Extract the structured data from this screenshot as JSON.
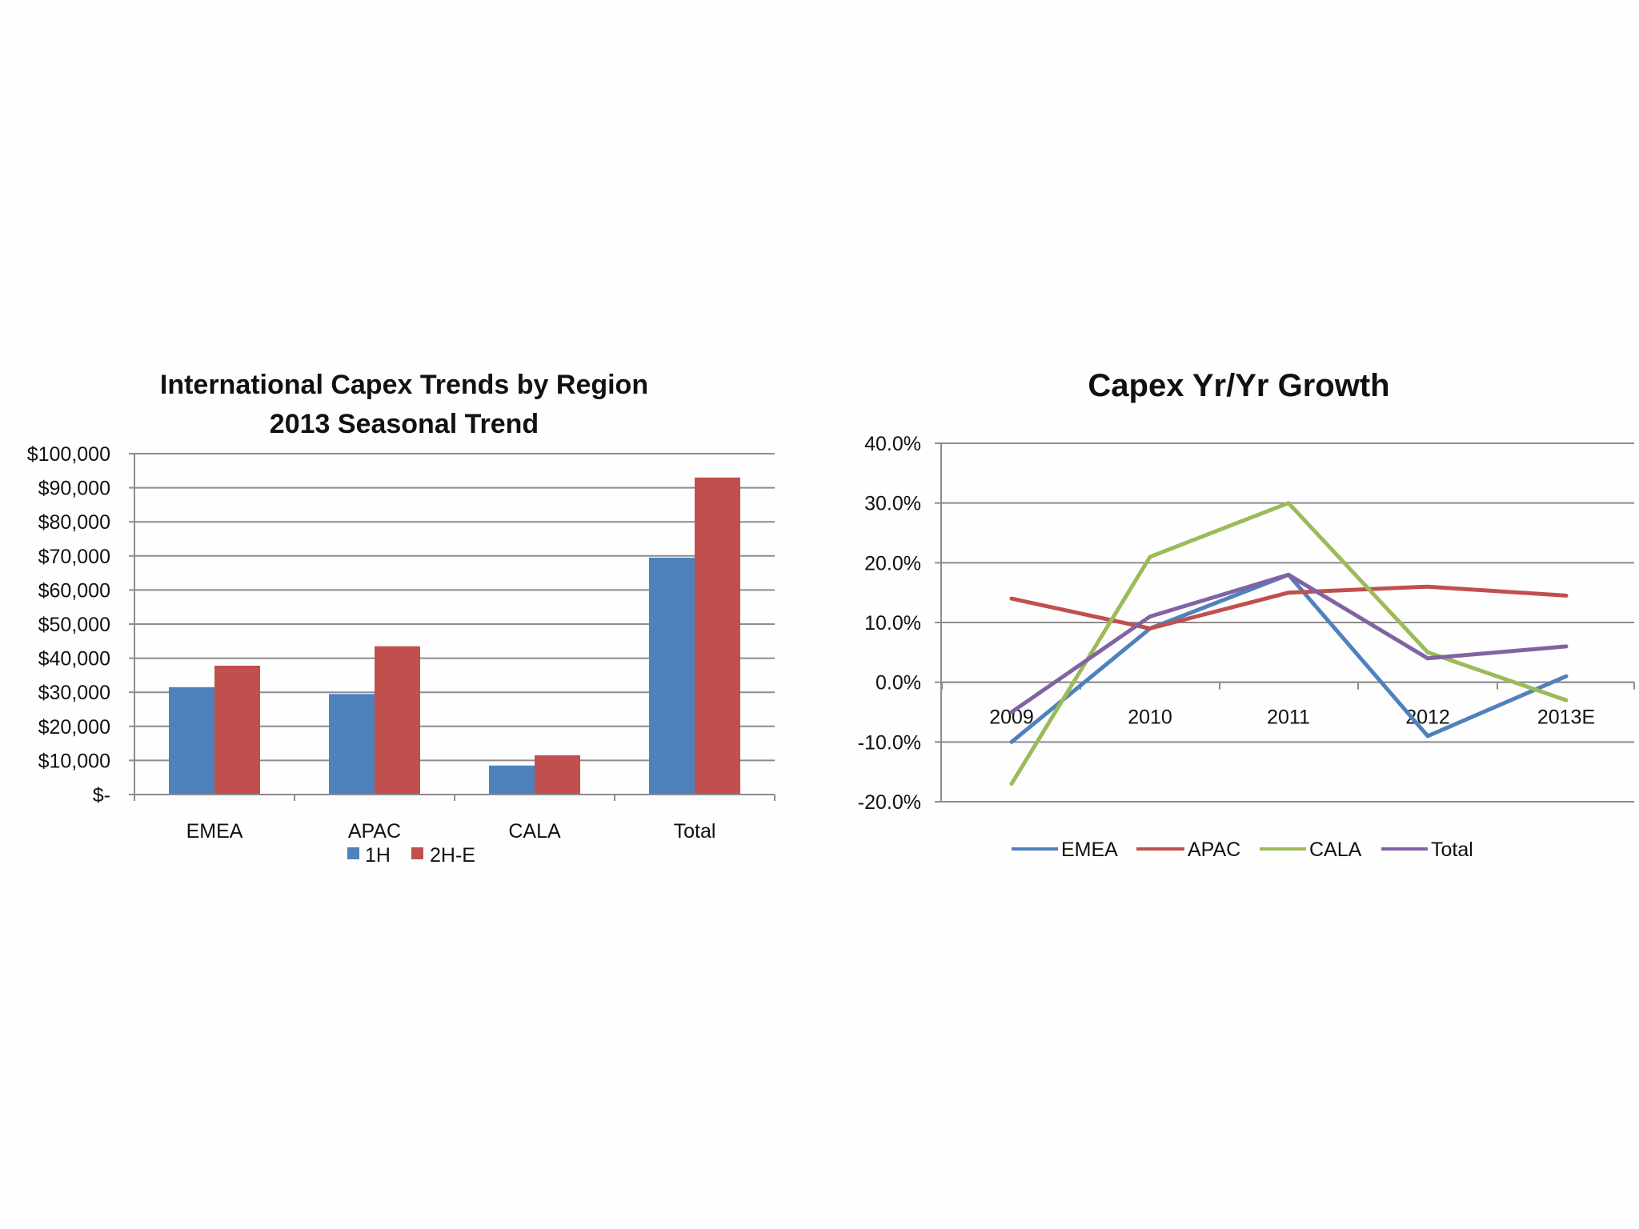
{
  "chart_data": [
    {
      "type": "bar",
      "title": "International Capex Trends by Region",
      "subtitle": "2013 Seasonal Trend",
      "categories": [
        "EMEA",
        "APAC",
        "CALA",
        "Total"
      ],
      "series": [
        {
          "name": "1H",
          "color": "#4f81bd",
          "values": [
            31500,
            29500,
            8500,
            69500
          ]
        },
        {
          "name": "2H-E",
          "color": "#c0504d",
          "values": [
            37800,
            43500,
            11500,
            93000
          ]
        }
      ],
      "ylim": [
        0,
        100000
      ],
      "yticks": [
        0,
        10000,
        20000,
        30000,
        40000,
        50000,
        60000,
        70000,
        80000,
        90000,
        100000
      ],
      "ytick_labels": [
        "$-",
        "$10,000",
        "$20,000",
        "$30,000",
        "$40,000",
        "$50,000",
        "$60,000",
        "$70,000",
        "$80,000",
        "$90,000",
        "$100,000"
      ],
      "grid": true,
      "legend": "bottom"
    },
    {
      "type": "line",
      "title": "Capex Yr/Yr Growth",
      "categories": [
        "2009",
        "2010",
        "2011",
        "2012",
        "2013E"
      ],
      "series": [
        {
          "name": "EMEA",
          "color": "#4f81bd",
          "values": [
            -10.0,
            9.0,
            18.0,
            -9.0,
            1.0
          ]
        },
        {
          "name": "APAC",
          "color": "#c0504d",
          "values": [
            14.0,
            9.0,
            15.0,
            16.0,
            14.5
          ]
        },
        {
          "name": "CALA",
          "color": "#9bbb59",
          "values": [
            -17.0,
            21.0,
            30.0,
            5.0,
            -3.0
          ]
        },
        {
          "name": "Total",
          "color": "#8064a2",
          "values": [
            -5.0,
            11.0,
            18.0,
            4.0,
            6.0
          ]
        }
      ],
      "ylim": [
        -20,
        40
      ],
      "yticks": [
        -20,
        -10,
        0,
        10,
        20,
        30,
        40
      ],
      "ytick_labels": [
        "-20.0%",
        "-10.0%",
        "0.0%",
        "10.0%",
        "20.0%",
        "30.0%",
        "40.0%"
      ],
      "grid": true,
      "legend": "bottom"
    }
  ]
}
